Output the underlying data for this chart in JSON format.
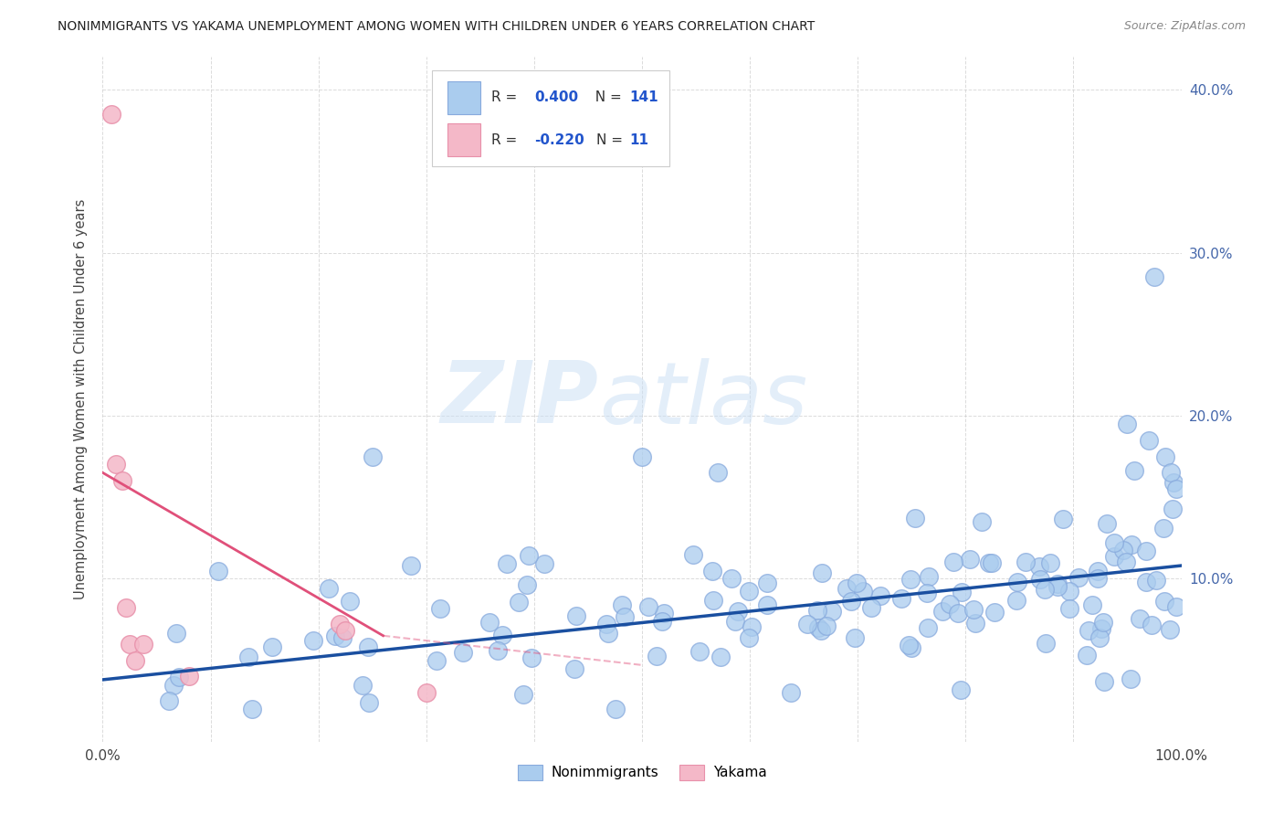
{
  "title": "NONIMMIGRANTS VS YAKAMA UNEMPLOYMENT AMONG WOMEN WITH CHILDREN UNDER 6 YEARS CORRELATION CHART",
  "source": "Source: ZipAtlas.com",
  "ylabel": "Unemployment Among Women with Children Under 6 years",
  "xlim": [
    0,
    1.0
  ],
  "ylim": [
    0,
    0.42
  ],
  "ytick_vals": [
    0.0,
    0.1,
    0.2,
    0.3,
    0.4
  ],
  "ytick_labels": [
    "",
    "10.0%",
    "20.0%",
    "30.0%",
    "40.0%"
  ],
  "xtick_vals": [
    0.0,
    0.1,
    0.2,
    0.3,
    0.4,
    0.5,
    0.6,
    0.7,
    0.8,
    0.9,
    1.0
  ],
  "xtick_labels": [
    "0.0%",
    "",
    "",
    "",
    "",
    "",
    "",
    "",
    "",
    "",
    "100.0%"
  ],
  "blue_color": "#aaccee",
  "blue_edge_color": "#88aadd",
  "pink_color": "#f4b8c8",
  "pink_edge_color": "#e890aa",
  "blue_line_color": "#1a4fa0",
  "pink_line_color": "#e0507a",
  "grid_color": "#cccccc",
  "bg_color": "#ffffff",
  "legend_R_blue": "0.400",
  "legend_N_blue": "141",
  "legend_R_pink": "-0.220",
  "legend_N_pink": "11",
  "blue_line": [
    [
      0.0,
      0.038
    ],
    [
      1.0,
      0.108
    ]
  ],
  "pink_line_solid": [
    [
      0.0,
      0.165
    ],
    [
      0.26,
      0.065
    ]
  ],
  "pink_line_dash": [
    [
      0.26,
      0.065
    ],
    [
      0.5,
      0.047
    ]
  ],
  "watermark_zip": "ZIP",
  "watermark_atlas": "atlas",
  "dot_size": 200,
  "yakama_x": [
    0.008,
    0.012,
    0.018,
    0.022,
    0.025,
    0.03,
    0.038,
    0.08,
    0.22,
    0.225,
    0.3
  ],
  "yakama_y": [
    0.385,
    0.17,
    0.16,
    0.082,
    0.06,
    0.05,
    0.06,
    0.04,
    0.072,
    0.068,
    0.03
  ]
}
